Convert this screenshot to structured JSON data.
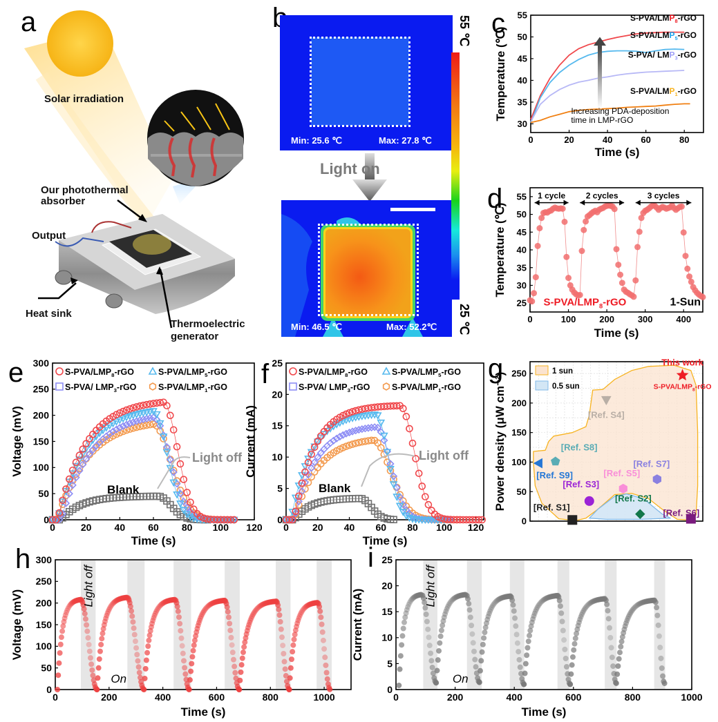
{
  "panels": {
    "a": {
      "label": "a",
      "solar_irradiation": "Solar irradiation",
      "absorber": "Our photothermal absorber",
      "absorber_line1": "Our photothermal",
      "absorber_line2": "absorber",
      "output": "Output",
      "heat_sink": "Heat sink",
      "teg_line1": "Thermoelectric",
      "teg_line2": "generator"
    },
    "b": {
      "label": "b",
      "top": {
        "min": "Min: 25.6 ℃",
        "max": "Max: 27.8 ℃"
      },
      "bottom": {
        "min": "Min: 46.5 ℃",
        "max": "Max: 52.2℃"
      },
      "arrow_text": "Light on",
      "scale_max": "55 ℃",
      "scale_min": "25 ℃"
    },
    "c": {
      "label": "c"
    },
    "d": {
      "label": "d"
    },
    "e": {
      "label": "e"
    },
    "f": {
      "label": "f"
    },
    "g": {
      "label": "g"
    },
    "h": {
      "label": "h"
    },
    "i": {
      "label": "i"
    }
  },
  "colors": {
    "p8": "#f0474b",
    "p5": "#56b9ee",
    "p3": "#8e8ef5",
    "p1": "#f39a4e",
    "p1_line": "#f07f11",
    "p3_line": "#b7b8f6",
    "blank": "#707070",
    "red_text": "#ee1c25",
    "blue_text": "#1ea5ee",
    "lav_text": "#9f9ff8",
    "orange_text": "#f7b320"
  },
  "chart_data": [
    {
      "id": "c",
      "type": "line",
      "xlabel": "Time (s)",
      "ylabel": "Temperature (℃)",
      "xlim": [
        0,
        90
      ],
      "ylim": [
        28,
        55
      ],
      "xticks": [
        0,
        20,
        40,
        60,
        80
      ],
      "yticks": [
        30,
        35,
        40,
        45,
        50,
        55
      ],
      "annotation": [
        "Increasing PDA-deposition",
        "time in LMP-rGO"
      ],
      "series": [
        {
          "name": "S-PVA/LMP8-rGO",
          "prefix": "S-PVA/LM",
          "P": "P",
          "sub": "8",
          "suffix": "-rGO",
          "x": [
            0,
            5,
            10,
            15,
            20,
            25,
            30,
            35,
            40,
            45,
            50,
            55,
            60,
            65,
            70,
            75,
            80
          ],
          "y": [
            31,
            36.5,
            40.5,
            43.5,
            45.8,
            47.3,
            48.2,
            48.8,
            49.4,
            49.9,
            50.3,
            50.7,
            50.9,
            51.0,
            51.1,
            51.1,
            51.1
          ]
        },
        {
          "name": "S-PVA/LMP5-rGO",
          "prefix": "S-PVA/LM",
          "P": "P",
          "sub": "5",
          "suffix": "-rGO",
          "x": [
            0,
            5,
            10,
            15,
            20,
            25,
            30,
            35,
            40,
            45,
            50,
            55,
            60,
            65,
            70,
            75,
            80
          ],
          "y": [
            30.2,
            36,
            39.5,
            41.8,
            43.5,
            44.8,
            45.8,
            46.4,
            46.7,
            46.8,
            46.8,
            46.7,
            46.4,
            46.8,
            47.1,
            47.2,
            47.1
          ]
        },
        {
          "name": "S-PVA/ LMP3-rGO",
          "prefix": "S-PVA/ LM",
          "P": "P",
          "sub": "3",
          "suffix": "-rGO",
          "x": [
            0,
            5,
            10,
            15,
            20,
            25,
            30,
            35,
            40,
            45,
            50,
            55,
            60,
            65,
            70,
            75,
            80
          ],
          "y": [
            30.5,
            34.5,
            36.5,
            37.9,
            38.9,
            39.6,
            40.0,
            40.5,
            40.8,
            41.2,
            41.5,
            41.7,
            41.9,
            42.0,
            42.1,
            42.2,
            42.3
          ]
        },
        {
          "name": "S-PVA/LMP1-rGO",
          "prefix": "S-PVA/LM",
          "P": "P",
          "sub": "1",
          "suffix": "-rGO",
          "x": [
            0,
            5,
            10,
            15,
            20,
            25,
            30,
            35,
            40,
            45,
            50,
            55,
            60,
            65,
            70,
            75,
            80,
            83
          ],
          "y": [
            30.3,
            30.8,
            31.6,
            32.2,
            32.8,
            33.1,
            33.3,
            33.4,
            33.5,
            33.6,
            33.8,
            33.9,
            34.0,
            34.1,
            34.3,
            34.5,
            34.6,
            34.6
          ]
        }
      ]
    },
    {
      "id": "d",
      "type": "scatter",
      "xlabel": "Time (s)",
      "ylabel": "Temperature (℃)",
      "xlim": [
        0,
        450
      ],
      "ylim": [
        22.5,
        57.5
      ],
      "xticks": [
        0,
        100,
        200,
        300,
        400
      ],
      "yticks": [
        25,
        30,
        35,
        40,
        45,
        50,
        55
      ],
      "cycle_labels": [
        "1 cycle",
        "2 cycles",
        "3 cycles"
      ],
      "cycle_spans": [
        [
          12,
          100
        ],
        [
          130,
          245
        ],
        [
          275,
          420
        ]
      ],
      "sample_label": "S-PVA/LMP8-rGO",
      "sample_prefix": "S-PVA/LMP",
      "sample_sub": "8",
      "sample_suffix": "-rGO",
      "sun_label": "1-Sun",
      "x": [
        0,
        5,
        10,
        15,
        20,
        25,
        30,
        35,
        40,
        45,
        50,
        55,
        60,
        65,
        70,
        75,
        80,
        85,
        90,
        95,
        100,
        105,
        110,
        115,
        120,
        125,
        130,
        135,
        140,
        145,
        150,
        155,
        160,
        165,
        170,
        175,
        180,
        185,
        190,
        195,
        200,
        205,
        210,
        215,
        220,
        225,
        230,
        235,
        240,
        245,
        250,
        255,
        260,
        265,
        270,
        275,
        280,
        285,
        290,
        295,
        300,
        305,
        310,
        315,
        320,
        325,
        330,
        335,
        340,
        345,
        350,
        355,
        360,
        365,
        370,
        375,
        380,
        385,
        390,
        395,
        400,
        405,
        410,
        415,
        420,
        425,
        430,
        435,
        440,
        445,
        450
      ],
      "y": [
        25.8,
        25.5,
        27.8,
        32.3,
        41.1,
        46.1,
        49.0,
        50.4,
        50.6,
        50.5,
        50.9,
        51.1,
        51.6,
        51.9,
        51.7,
        51.6,
        51.7,
        51.6,
        47.9,
        38.0,
        32.1,
        30.0,
        28.8,
        28.0,
        27.5,
        27.2,
        27.3,
        39.7,
        45.6,
        48.0,
        49.4,
        49.8,
        50.3,
        50.7,
        51.0,
        50.6,
        51.3,
        51.6,
        51.8,
        52.2,
        52.4,
        52.5,
        52.4,
        52.2,
        51.5,
        40.2,
        35.8,
        33.0,
        30.7,
        28.8,
        28.2,
        27.9,
        27.5,
        27.2,
        26.8,
        31.4,
        40.8,
        45.1,
        49.0,
        50.4,
        51.0,
        51.3,
        51.7,
        52.2,
        52.5,
        52.4,
        51.9,
        51.3,
        51.8,
        52.1,
        51.9,
        51.6,
        51.8,
        52.0,
        52.5,
        51.8,
        51.3,
        51.7,
        52.1,
        52.2,
        44.9,
        38.3,
        34.7,
        32.5,
        31.0,
        29.5,
        28.6,
        27.9,
        27.4,
        27.0,
        26.7
      ]
    },
    {
      "id": "e",
      "type": "scatter",
      "xlabel": "Time (s)",
      "ylabel": "Voltage (mV)",
      "xlim": [
        0,
        120
      ],
      "ylim": [
        0,
        300
      ],
      "xticks": [
        0,
        20,
        40,
        60,
        80,
        100,
        120
      ],
      "yticks": [
        0,
        50,
        100,
        150,
        200,
        250,
        300
      ],
      "legend": [
        {
          "prefix": "S-PVA/LMP",
          "sub": "8",
          "suffix": "-rGO",
          "marker": "circle"
        },
        {
          "prefix": "S-PVA/LMP",
          "sub": "5",
          "suffix": "-rGO",
          "marker": "triangle-up"
        },
        {
          "prefix": "S-PVA/ LMP",
          "sub": "3",
          "suffix": "-rGO",
          "marker": "square"
        },
        {
          "prefix": "S-PVA/LMP",
          "sub": "1",
          "suffix": "-rGO",
          "marker": "hexagon"
        }
      ],
      "annotations": {
        "light_off": "Light off",
        "blank": "Blank"
      },
      "series": [
        {
          "name": "S-PVA/LMP8-rGO",
          "color_key": "p8",
          "marker": "circle",
          "on_end": 66,
          "peak": 225,
          "rise_tau": 17,
          "start": 3,
          "fall_tau": 11,
          "end": 108
        },
        {
          "name": "S-PVA/LMP5-rGO",
          "color_key": "p5",
          "marker": "triangle-down",
          "on_end": 60,
          "peak": 208,
          "rise_tau": 17,
          "start": 3,
          "fall_tau": 11,
          "end": 108
        },
        {
          "name": "S-PVA/ LMP3-rGO",
          "color_key": "p3",
          "marker": "diamond",
          "on_end": 60,
          "peak": 196,
          "rise_tau": 18,
          "start": 5,
          "fall_tau": 13,
          "end": 108
        },
        {
          "name": "S-PVA/LMP1-rGO",
          "color_key": "p1",
          "marker": "circle",
          "on_end": 60,
          "peak": 183,
          "rise_tau": 18,
          "start": 3,
          "fall_tau": 14,
          "end": 109
        },
        {
          "name": "Blank",
          "color_key": "blank",
          "marker": "square",
          "on_end": 63,
          "peak": 45,
          "rise_tau": 12,
          "start": 5,
          "fall_tau": 10,
          "end": 92
        }
      ]
    },
    {
      "id": "f",
      "type": "scatter",
      "xlabel": "Time (s)",
      "ylabel": "Current (mA)",
      "xlim": [
        0,
        125
      ],
      "ylim": [
        0,
        25
      ],
      "xticks": [
        0,
        20,
        40,
        60,
        80,
        100,
        120
      ],
      "yticks": [
        0,
        5,
        10,
        15,
        20,
        25
      ],
      "legend": [
        {
          "prefix": "S-PVA/LMP",
          "sub": "8",
          "suffix": "-rGO",
          "marker": "circle"
        },
        {
          "prefix": "S-PVA/LMP",
          "sub": "5",
          "suffix": "-rGO",
          "marker": "triangle-up"
        },
        {
          "prefix": "S-PVA/ LMP",
          "sub": "3",
          "suffix": "-rGO",
          "marker": "square"
        },
        {
          "prefix": "S-PVA/LMP",
          "sub": "1",
          "suffix": "-rGO",
          "marker": "hexagon"
        }
      ],
      "annotations": {
        "light_off": "Light off",
        "blank": "Blank"
      },
      "series": [
        {
          "name": "S-PVA/LMP8-rGO",
          "color_key": "p8",
          "marker": "circle",
          "on_end": 72,
          "peak": 18.2,
          "rise_tau": 13,
          "start": 5,
          "fall_tau": 12,
          "end": 124
        },
        {
          "name": "S-PVA/LMP5-rGO",
          "color_key": "p5",
          "marker": "triangle-down",
          "on_end": 57,
          "peak": 16.8,
          "rise_tau": 13,
          "start": 3,
          "fall_tau": 10,
          "end": 100
        },
        {
          "name": "S-PVA/ LMP3-rGO",
          "color_key": "p3",
          "marker": "diamond",
          "on_end": 57,
          "peak": 14.8,
          "rise_tau": 14,
          "start": 5,
          "fall_tau": 12,
          "end": 104
        },
        {
          "name": "S-PVA/LMP1-rGO",
          "color_key": "p1",
          "marker": "circle",
          "on_end": 55,
          "peak": 12.7,
          "rise_tau": 15,
          "start": 5,
          "fall_tau": 15,
          "end": 108
        },
        {
          "name": "Blank",
          "color_key": "blank",
          "marker": "square",
          "on_end": 47,
          "peak": 3.4,
          "rise_tau": 10,
          "start": 5,
          "fall_tau": 9,
          "end": 68
        }
      ]
    },
    {
      "id": "g",
      "type": "scatter",
      "xlabel": "",
      "ylabel": "Power density  (μW cm⁻²)",
      "xlim": [
        0,
        10
      ],
      "ylim": [
        0,
        270
      ],
      "yticks": [
        0,
        50,
        100,
        150,
        200,
        250
      ],
      "legend": [
        {
          "label": "1 sun",
          "fill": "#fbe3cf",
          "stroke": "#f7b320"
        },
        {
          "label": "0.5 sun",
          "fill": "#d3e6f5",
          "stroke": "#80b8e8"
        }
      ],
      "points": [
        {
          "label": "This work",
          "sublabel_prefix": "S-PVA/LMP",
          "sublabel_sub": "8",
          "sublabel_suffix": "-rGO",
          "x": 8.5,
          "y": 247,
          "marker": "star",
          "color": "#ee1c25"
        },
        {
          "label": "[Ref. S4]",
          "x": 4.0,
          "y": 205,
          "marker": "triangle-down",
          "color": "#b9afa6"
        },
        {
          "label": "[Ref. S8]",
          "x": 1.0,
          "y": 101,
          "marker": "pentagon",
          "color": "#5aacb5"
        },
        {
          "label": "[Ref. S9]",
          "x": 0.0,
          "y": 98,
          "marker": "triangle-left",
          "color": "#2477d6"
        },
        {
          "label": "[Ref. S5]",
          "x": 5.0,
          "y": 55,
          "marker": "hexagon",
          "color": "#f98ed8"
        },
        {
          "label": "[Ref. S7]",
          "x": 7.0,
          "y": 71,
          "marker": "hexagon",
          "color": "#8a80e0"
        },
        {
          "label": "[Ref. S3]",
          "x": 3.0,
          "y": 34,
          "marker": "sphere",
          "color": "#9b23d6"
        },
        {
          "label": "[Ref. S1]",
          "x": 2.0,
          "y": 2,
          "marker": "square",
          "color": "#222222"
        },
        {
          "label": "[Ref. S2]",
          "x": 6.0,
          "y": 12,
          "marker": "diamond",
          "color": "#12774a"
        },
        {
          "label": "[Ref. S6]",
          "x": 9.0,
          "y": 4,
          "marker": "square",
          "color": "#7a1b7e"
        }
      ]
    },
    {
      "id": "h",
      "type": "scatter",
      "xlabel": "Time (s)",
      "ylabel": "Voltage (mV)",
      "xlim": [
        0,
        1100
      ],
      "ylim": [
        0,
        300
      ],
      "xticks": [
        0,
        200,
        400,
        600,
        800,
        1000
      ],
      "yticks": [
        0,
        50,
        100,
        150,
        200,
        250,
        300
      ],
      "light_off_label": "Light off",
      "on_label": "On",
      "off_bands": [
        [
          95,
          150
        ],
        [
          268,
          332
        ],
        [
          440,
          505
        ],
        [
          630,
          686
        ],
        [
          820,
          875
        ],
        [
          972,
          1028
        ]
      ],
      "cycles": [
        {
          "start": 8,
          "peak_t": 95,
          "peak": 208,
          "end": 155
        },
        {
          "start": 155,
          "peak_t": 268,
          "peak": 213,
          "end": 330
        },
        {
          "start": 330,
          "peak_t": 445,
          "peak": 208,
          "end": 498
        },
        {
          "start": 498,
          "peak_t": 630,
          "peak": 206,
          "end": 684
        },
        {
          "start": 684,
          "peak_t": 822,
          "peak": 204,
          "end": 870
        },
        {
          "start": 870,
          "peak_t": 976,
          "peak": 201,
          "end": 1022
        }
      ]
    },
    {
      "id": "i",
      "type": "scatter",
      "xlabel": "Time (s)",
      "ylabel": "Current (mA)",
      "xlim": [
        0,
        1000
      ],
      "ylim": [
        0,
        25
      ],
      "xticks": [
        0,
        200,
        400,
        600,
        800,
        1000
      ],
      "yticks": [
        0,
        5,
        10,
        15,
        20,
        25
      ],
      "light_off_label": "Light off",
      "on_label": "On",
      "off_bands": [
        [
          92,
          140
        ],
        [
          240,
          290
        ],
        [
          385,
          434
        ],
        [
          546,
          586
        ],
        [
          706,
          746
        ],
        [
          873,
          910
        ]
      ],
      "cycles": [
        {
          "start": 10,
          "min": 0.8,
          "peak_t": 87,
          "peak": 18.3,
          "end": 136,
          "end_val": 1.3
        },
        {
          "start": 136,
          "min": 1.3,
          "peak_t": 237,
          "peak": 18.3,
          "end": 282,
          "end_val": 1.4
        },
        {
          "start": 282,
          "min": 1.4,
          "peak_t": 387,
          "peak": 18.0,
          "end": 433,
          "end_val": 1.0
        },
        {
          "start": 433,
          "min": 1.0,
          "peak_t": 547,
          "peak": 18.1,
          "end": 589,
          "end_val": 1.0
        },
        {
          "start": 589,
          "min": 1.0,
          "peak_t": 707,
          "peak": 17.5,
          "end": 745,
          "end_val": 1.2
        },
        {
          "start": 745,
          "min": 1.2,
          "peak_t": 875,
          "peak": 17.2,
          "end": 908,
          "end_val": 1.2
        }
      ]
    }
  ]
}
